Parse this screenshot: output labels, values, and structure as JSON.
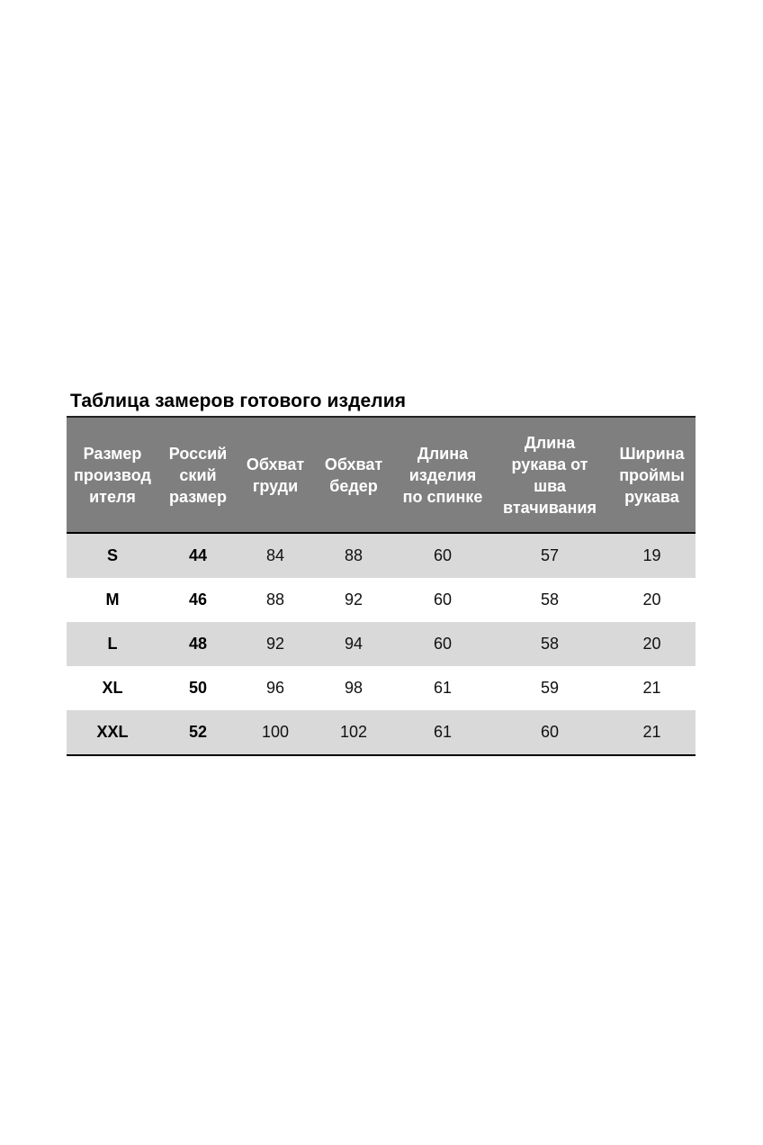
{
  "title": "Таблица замеров готового изделия",
  "table": {
    "headers": [
      "Размер производ ителя",
      "Россий ский размер",
      "Обхват груди",
      "Обхват бедер",
      "Длина изделия по спинке",
      "Длина рукава от шва втачивания",
      "Ширина проймы рукава"
    ],
    "header_lines": [
      [
        "Размер",
        "производ",
        "ителя"
      ],
      [
        "Россий",
        "ский",
        "размер"
      ],
      [
        "Обхват",
        "груди"
      ],
      [
        "Обхват",
        "бедер"
      ],
      [
        "Длина",
        "изделия",
        "по спинке"
      ],
      [
        "Длина",
        "рукава от",
        "шва",
        "втачивания"
      ],
      [
        "Ширина",
        "проймы",
        "рукава"
      ]
    ],
    "rows": [
      [
        "S",
        "44",
        "84",
        "88",
        "60",
        "57",
        "19"
      ],
      [
        "M",
        "46",
        "88",
        "92",
        "60",
        "58",
        "20"
      ],
      [
        "L",
        "48",
        "92",
        "94",
        "60",
        "58",
        "20"
      ],
      [
        "XL",
        "50",
        "96",
        "98",
        "61",
        "59",
        "21"
      ],
      [
        "XXL",
        "52",
        "100",
        "102",
        "61",
        "60",
        "21"
      ]
    ]
  },
  "colors": {
    "header_bg": "#7f7f7f",
    "stripe_bg": "#d9d9d9",
    "header_text": "#ffffff"
  }
}
